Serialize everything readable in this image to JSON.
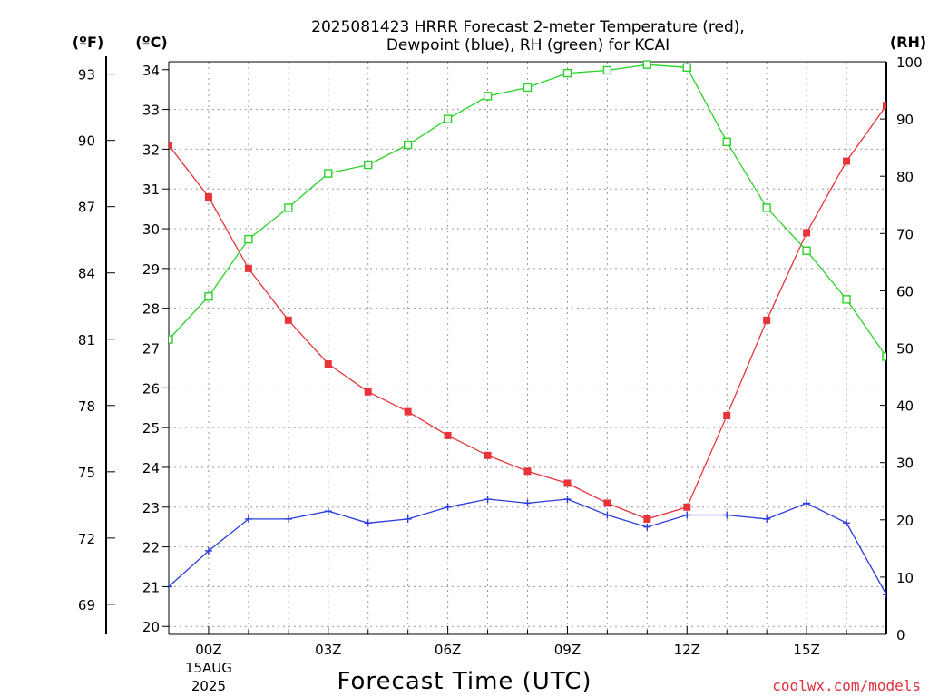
{
  "chart_data": {
    "type": "line",
    "title": [
      "2025081423 HRRR Forecast 2-meter Temperature (red),",
      "Dewpoint (blue), RH (green) for KCAI"
    ],
    "xlabel": "Forecast Time (UTC)",
    "left_unit_f": "(ºF)",
    "left_unit_c": "(ºC)",
    "right_unit": "(RH)",
    "credit": "coolwx.com/models",
    "x_hours": [
      -1,
      0,
      1,
      2,
      3,
      4,
      5,
      6,
      7,
      8,
      9,
      10,
      11,
      12,
      13,
      14,
      15,
      16,
      17
    ],
    "xlim": [
      -1,
      17
    ],
    "x_ticks": [
      {
        "hour": 0,
        "label": "00Z",
        "sub1": "15AUG",
        "sub2": "2025"
      },
      {
        "hour": 3,
        "label": "03Z"
      },
      {
        "hour": 6,
        "label": "06Z"
      },
      {
        "hour": 9,
        "label": "09Z"
      },
      {
        "hour": 12,
        "label": "12Z"
      },
      {
        "hour": 15,
        "label": "15Z"
      }
    ],
    "c_axis": {
      "lim": [
        19.8,
        34.2
      ],
      "ticks": [
        20,
        21,
        22,
        23,
        24,
        25,
        26,
        27,
        28,
        29,
        30,
        31,
        32,
        33,
        34
      ]
    },
    "f_axis": {
      "ticks": [
        69,
        72,
        75,
        78,
        81,
        84,
        87,
        90,
        93
      ]
    },
    "rh_axis": {
      "lim": [
        0,
        100
      ],
      "ticks": [
        0,
        10,
        20,
        30,
        40,
        50,
        60,
        70,
        80,
        90,
        100
      ]
    },
    "series": [
      {
        "name": "Temperature",
        "axis": "c",
        "color": "#e8333a",
        "marker": "filled-square",
        "values": [
          32.1,
          30.8,
          29.0,
          27.7,
          26.6,
          25.9,
          25.4,
          24.8,
          24.3,
          23.9,
          23.6,
          23.1,
          22.7,
          23.0,
          25.3,
          27.7,
          29.9,
          31.7,
          33.1
        ]
      },
      {
        "name": "Dewpoint",
        "axis": "c",
        "color": "#2a3cdc",
        "marker": "plus",
        "values": [
          21.0,
          21.9,
          22.7,
          22.7,
          22.9,
          22.6,
          22.7,
          23.0,
          23.2,
          23.1,
          23.2,
          22.8,
          22.5,
          22.8,
          22.8,
          22.7,
          23.1,
          22.6,
          20.8
        ]
      },
      {
        "name": "RH",
        "axis": "rh",
        "color": "#2ad22a",
        "marker": "open-square",
        "values": [
          51.5,
          59,
          69,
          74.5,
          80.5,
          82,
          85.5,
          90,
          94,
          95.5,
          98,
          98.5,
          99.5,
          99,
          86,
          74.5,
          67,
          58.5,
          48.5
        ]
      }
    ]
  }
}
